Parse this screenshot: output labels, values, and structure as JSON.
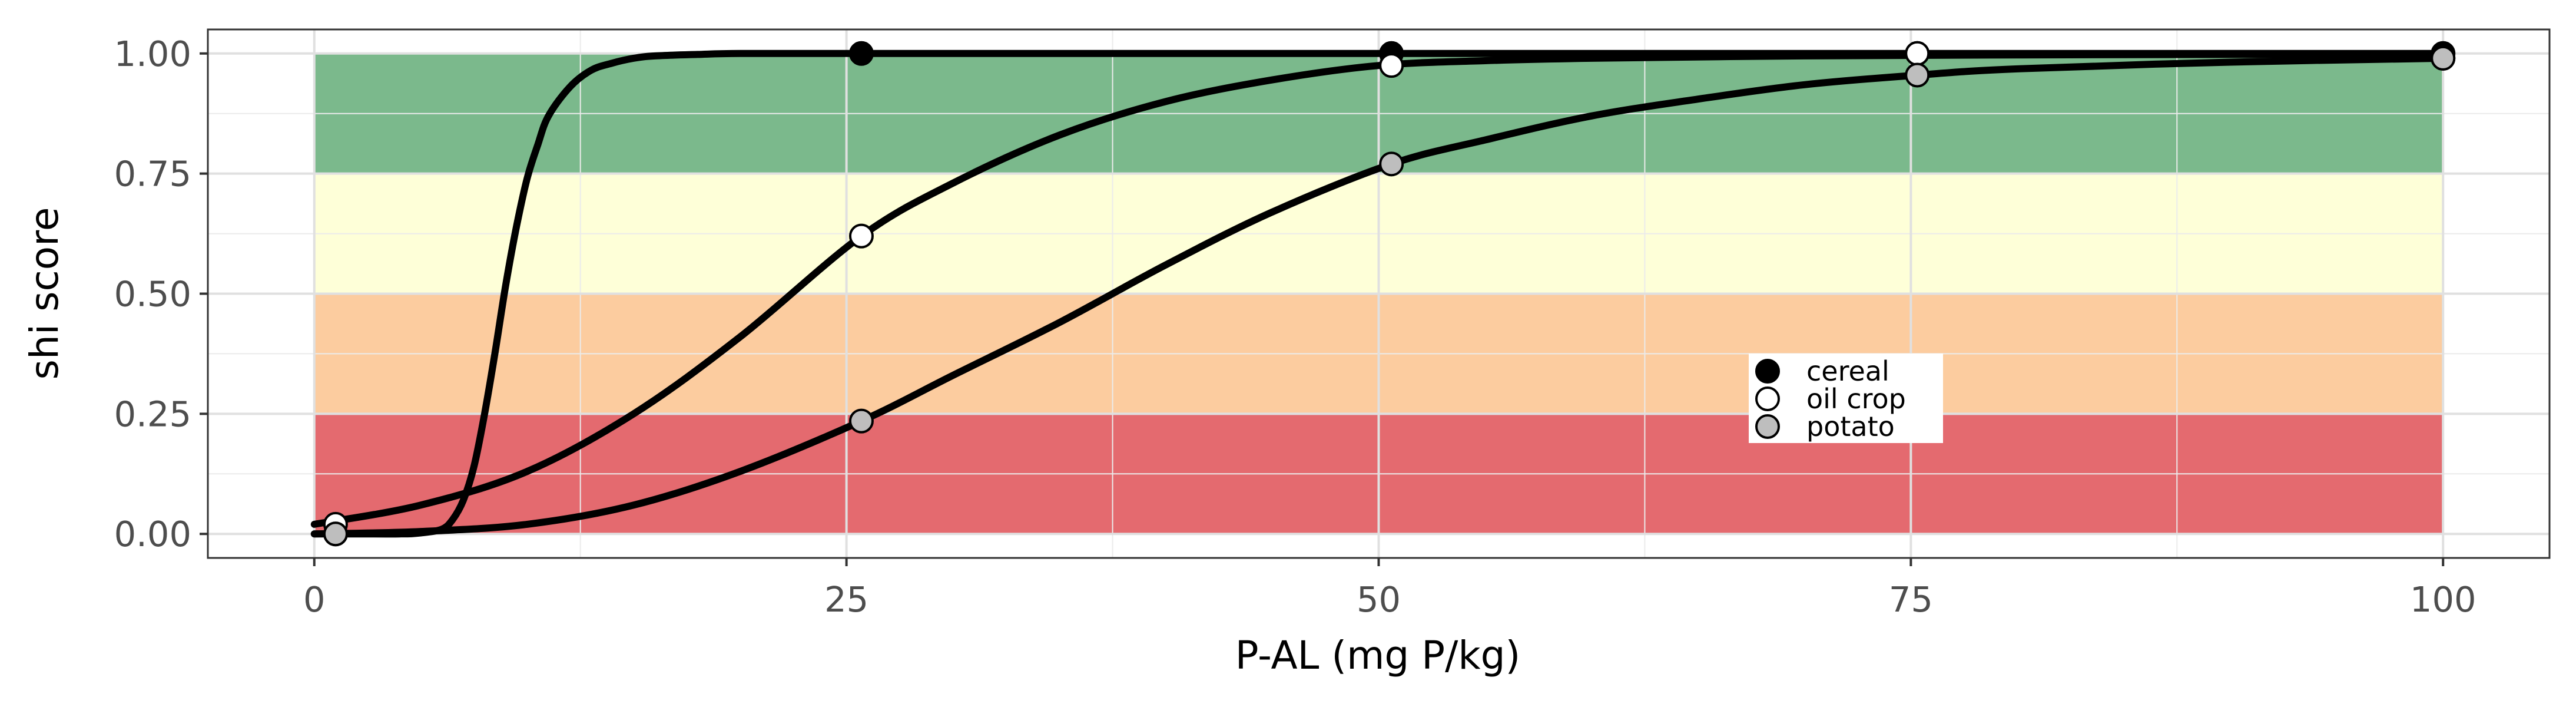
{
  "chart_data": {
    "type": "line",
    "xlabel": "P-AL (mg P/kg)",
    "ylabel": "shi score",
    "xlim": [
      -5,
      105
    ],
    "ylim": [
      -0.05,
      1.05
    ],
    "x_ticks": [
      0,
      25,
      50,
      75,
      100
    ],
    "x_tick_labels": [
      "0",
      "25",
      "50",
      "75",
      "100"
    ],
    "y_ticks": [
      0,
      0.25,
      0.5,
      0.75,
      1
    ],
    "y_tick_labels": [
      "0.00",
      "0.25",
      "0.50",
      "0.75",
      "1.00"
    ],
    "grid": true,
    "legend_position": "inside, center-right",
    "bands": [
      {
        "from": 0,
        "to": 0.25,
        "x_from": 0,
        "x_to": 100,
        "color": "#e46a6f"
      },
      {
        "from": 0.25,
        "to": 0.5,
        "x_from": 0,
        "x_to": 100,
        "color": "#fccc9f"
      },
      {
        "from": 0.5,
        "to": 0.75,
        "x_from": 0,
        "x_to": 100,
        "color": "#feffd8"
      },
      {
        "from": 0.75,
        "to": 1,
        "x_from": 0,
        "x_to": 100,
        "color": "#7bb98c"
      }
    ],
    "series": [
      {
        "name": "cereal",
        "fill": "#000000",
        "curve_x": [
          0,
          2,
          4,
          5,
          6,
          6.5,
          7,
          7.5,
          8,
          8.5,
          9,
          9.5,
          10,
          10.5,
          11,
          12,
          13,
          14,
          15,
          16,
          18,
          20,
          25,
          30,
          40,
          50,
          60,
          70,
          80,
          90,
          100
        ],
        "curve_y": [
          0,
          0,
          0,
          0.002,
          0.01,
          0.03,
          0.07,
          0.14,
          0.25,
          0.38,
          0.52,
          0.64,
          0.74,
          0.81,
          0.87,
          0.93,
          0.965,
          0.98,
          0.99,
          0.995,
          0.998,
          1.0,
          1.0,
          1.0,
          1.0,
          1.0,
          1.0,
          1.0,
          1.0,
          1.0,
          1.0
        ],
        "points_x": [
          1,
          25.7,
          50.6,
          75.3,
          100
        ],
        "points_y": [
          0,
          1.0,
          1.0,
          1.0,
          1.0
        ]
      },
      {
        "name": "oil crop",
        "fill": "#ffffff",
        "curve_x": [
          0,
          5,
          10,
          15,
          20,
          25.7,
          30,
          35,
          40,
          45,
          50,
          55,
          60,
          70,
          80,
          90,
          100
        ],
        "curve_y": [
          0.02,
          0.06,
          0.13,
          0.25,
          0.41,
          0.62,
          0.73,
          0.83,
          0.9,
          0.945,
          0.975,
          0.985,
          0.99,
          0.995,
          0.997,
          0.998,
          0.999
        ],
        "points_x": [
          1,
          25.7,
          50.6,
          75.3,
          100
        ],
        "points_y": [
          0.02,
          0.62,
          0.975,
          1.0,
          0.99
        ]
      },
      {
        "name": "potato",
        "fill": "#bebebe",
        "curve_x": [
          0,
          5,
          10,
          15,
          20,
          25.7,
          30,
          35,
          40,
          45,
          50.6,
          55,
          60,
          65,
          70,
          75.3,
          80,
          90,
          100
        ],
        "curve_y": [
          0.0,
          0.005,
          0.02,
          0.06,
          0.13,
          0.235,
          0.33,
          0.44,
          0.56,
          0.67,
          0.77,
          0.82,
          0.87,
          0.905,
          0.935,
          0.955,
          0.968,
          0.982,
          0.99
        ],
        "points_x": [
          1,
          25.7,
          50.6,
          75.3,
          100
        ],
        "points_y": [
          0.0,
          0.235,
          0.77,
          0.955,
          0.99
        ]
      }
    ]
  }
}
